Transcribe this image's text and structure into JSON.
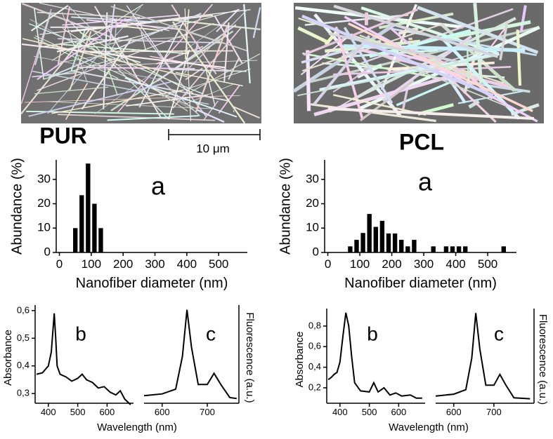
{
  "scale_bar": "10 μm",
  "chart_data": [
    {
      "type": "bar",
      "title": "PUR",
      "annotation": "a",
      "x_label": "Nanofiber diameter (nm)",
      "y_label": "Abundance (%)",
      "color": "#000000",
      "x": [
        50,
        70,
        90,
        110,
        130
      ],
      "values": [
        10,
        23.5,
        36.5,
        20,
        10
      ],
      "xlim": [
        -10,
        590
      ],
      "ylim": [
        0,
        38
      ],
      "xticks": [
        0,
        100,
        200,
        300,
        400,
        500
      ],
      "yticks": [
        0,
        10,
        20,
        30
      ]
    },
    {
      "type": "line",
      "annotation": "b",
      "x_label": "Wavelength (nm)",
      "y_label": "Absorbance",
      "color": "#000000",
      "x": [
        360,
        380,
        400,
        410,
        415,
        420,
        425,
        430,
        440,
        460,
        480,
        500,
        515,
        530,
        550,
        570,
        590,
        610,
        630,
        645,
        660,
        680
      ],
      "values": [
        0.37,
        0.375,
        0.4,
        0.45,
        0.52,
        0.59,
        0.5,
        0.4,
        0.37,
        0.36,
        0.345,
        0.355,
        0.37,
        0.35,
        0.34,
        0.32,
        0.325,
        0.305,
        0.295,
        0.31,
        0.28,
        0.26
      ],
      "xlim": [
        355,
        690
      ],
      "ylim": [
        0.265,
        0.62
      ],
      "xticks": [
        400,
        500,
        600
      ],
      "yticks": [
        {
          "value": 0.3,
          "label": "0,3"
        },
        {
          "value": 0.4,
          "label": "0,4"
        },
        {
          "value": 0.5,
          "label": "0,5"
        },
        {
          "value": 0.6,
          "label": "0,6"
        }
      ]
    },
    {
      "type": "line",
      "annotation": "c",
      "y_label": "Fluorescence (a.u.)",
      "color": "#000000",
      "x": [
        560,
        600,
        630,
        645,
        655,
        665,
        680,
        700,
        715,
        730,
        750,
        765
      ],
      "values": [
        0.08,
        0.1,
        0.15,
        0.5,
        1.0,
        0.6,
        0.2,
        0.2,
        0.32,
        0.2,
        0.06,
        0.05
      ],
      "xlim": [
        560,
        770
      ],
      "ylim": [
        0,
        1.05
      ],
      "xticks": [
        600,
        700
      ]
    },
    {
      "type": "bar",
      "title": "PCL",
      "annotation": "a",
      "x_label": "Nanofiber diameter (nm)",
      "y_label": "Abundance (%)",
      "color": "#000000",
      "x": [
        70,
        90,
        110,
        130,
        150,
        170,
        190,
        210,
        230,
        250,
        270,
        330,
        370,
        390,
        410,
        430,
        550
      ],
      "values": [
        2.5,
        5.2,
        8,
        15.8,
        10.5,
        13,
        7.8,
        7.8,
        5.2,
        2.5,
        5.2,
        2.5,
        2.5,
        2.5,
        2.5,
        2.5,
        2.5
      ],
      "xlim": [
        -10,
        590
      ],
      "ylim": [
        0,
        38
      ],
      "xticks": [
        0,
        100,
        200,
        300,
        400,
        500
      ],
      "yticks": [
        0,
        10,
        20,
        30
      ]
    },
    {
      "type": "line",
      "annotation": "b",
      "x_label": "Wavelength (nm)",
      "y_label": "Absorbance",
      "color": "#000000",
      "x": [
        360,
        370,
        380,
        390,
        400,
        410,
        420,
        430,
        440,
        450,
        470,
        500,
        515,
        530,
        550,
        570,
        590,
        610,
        640,
        660,
        680
      ],
      "values": [
        0.28,
        0.3,
        0.33,
        0.35,
        0.45,
        0.7,
        0.93,
        0.8,
        0.5,
        0.25,
        0.17,
        0.16,
        0.25,
        0.16,
        0.2,
        0.13,
        0.15,
        0.12,
        0.13,
        0.1,
        0.1
      ],
      "xlim": [
        355,
        690
      ],
      "ylim": [
        0.05,
        0.97
      ],
      "xticks": [
        400,
        500,
        600
      ],
      "yticks": [
        {
          "value": 0.2,
          "label": "0,2"
        },
        {
          "value": 0.4,
          "label": "0,4"
        },
        {
          "value": 0.6,
          "label": "0,6"
        },
        {
          "value": 0.8,
          "label": "0,8"
        }
      ]
    },
    {
      "type": "line",
      "annotation": "c",
      "y_label": "Fluorescence (a.u.)",
      "color": "#000000",
      "x": [
        555,
        600,
        630,
        645,
        655,
        665,
        680,
        700,
        715,
        730,
        750,
        790
      ],
      "values": [
        0.08,
        0.1,
        0.15,
        0.5,
        1.0,
        0.6,
        0.2,
        0.2,
        0.32,
        0.2,
        0.06,
        0.05
      ],
      "xlim": [
        555,
        800
      ],
      "ylim": [
        0,
        1.05
      ],
      "xticks": [
        600,
        700
      ]
    }
  ]
}
